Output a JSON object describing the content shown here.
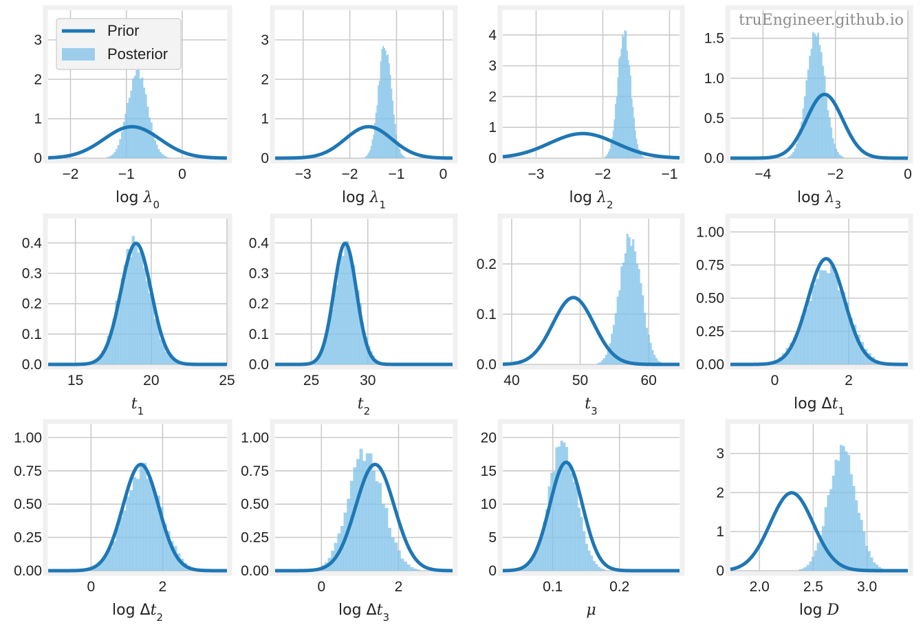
{
  "figure": {
    "watermark": "truEngineer.github.io",
    "legend": {
      "prior_label": "Prior",
      "posterior_label": "Posterior"
    },
    "colors": {
      "prior": "#1f77b4",
      "posterior": "#7fc2e8",
      "grid": "#cbcbcb",
      "frame": "#f0f0f0"
    }
  },
  "chart_data": [
    {
      "name": "log-lambda-0",
      "type": "histogram+line",
      "xlabel_parts": [
        [
          "log ",
          "n"
        ],
        [
          "λ",
          "i"
        ],
        [
          "0",
          "sub"
        ]
      ],
      "xlim": [
        -2.4,
        0.8
      ],
      "ylim": [
        0,
        3.75
      ],
      "xticks": [
        -2,
        -1,
        0
      ],
      "xticklabels": [
        "−2",
        "−1",
        "0"
      ],
      "yticks": [
        0,
        1,
        2,
        3
      ],
      "yticklabels": [
        "0",
        "1",
        "2",
        "3"
      ],
      "prior": {
        "mu": -0.9,
        "sigma": 0.5
      },
      "posterior": {
        "mu": -0.8,
        "sigma": 0.18
      }
    },
    {
      "name": "log-lambda-1",
      "type": "histogram+line",
      "xlabel_parts": [
        [
          "log ",
          "n"
        ],
        [
          "λ",
          "i"
        ],
        [
          "1",
          "sub"
        ]
      ],
      "xlim": [
        -3.6,
        0.2
      ],
      "ylim": [
        0,
        3.75
      ],
      "xticks": [
        -3,
        -2,
        -1,
        0
      ],
      "xticklabels": [
        "−3",
        "−2",
        "−1",
        "0"
      ],
      "yticks": [
        0,
        1,
        2,
        3
      ],
      "yticklabels": [
        "0",
        "1",
        "2",
        "3"
      ],
      "prior": {
        "mu": -1.6,
        "sigma": 0.5
      },
      "posterior": {
        "mu": -1.25,
        "sigma": 0.14
      }
    },
    {
      "name": "log-lambda-2",
      "type": "histogram+line",
      "xlabel_parts": [
        [
          "log ",
          "n"
        ],
        [
          "λ",
          "i"
        ],
        [
          "2",
          "sub"
        ]
      ],
      "xlim": [
        -3.5,
        -0.85
      ],
      "ylim": [
        0,
        4.8
      ],
      "xticks": [
        -3,
        -2,
        -1
      ],
      "xticklabels": [
        "−3",
        "−2",
        "−1"
      ],
      "yticks": [
        0,
        1,
        2,
        3,
        4
      ],
      "yticklabels": [
        "0",
        "1",
        "2",
        "3",
        "4"
      ],
      "prior": {
        "mu": -2.3,
        "sigma": 0.5
      },
      "posterior": {
        "mu": -1.68,
        "sigma": 0.095
      }
    },
    {
      "name": "log-lambda-3",
      "type": "histogram+line",
      "xlabel_parts": [
        [
          "log ",
          "n"
        ],
        [
          "λ",
          "i"
        ],
        [
          "3",
          "sub"
        ]
      ],
      "xlim": [
        -4.9,
        0.0
      ],
      "ylim": [
        0,
        1.85
      ],
      "xticks": [
        -4,
        -2,
        0
      ],
      "xticklabels": [
        "−4",
        "−2",
        "0"
      ],
      "yticks": [
        0,
        0.5,
        1,
        1.5
      ],
      "yticklabels": [
        "0.0",
        "0.5",
        "1.0",
        "1.5"
      ],
      "prior": {
        "mu": -2.3,
        "sigma": 0.5
      },
      "posterior": {
        "mu": -2.55,
        "sigma": 0.25
      }
    },
    {
      "name": "t-1",
      "type": "histogram+line",
      "xlabel_parts": [
        [
          "t",
          "i"
        ],
        [
          "1",
          "sub"
        ]
      ],
      "xlim": [
        13.2,
        25.0
      ],
      "ylim": [
        0,
        0.48
      ],
      "xticks": [
        15,
        20,
        25
      ],
      "xticklabels": [
        "15",
        "20",
        "25"
      ],
      "yticks": [
        0,
        0.1,
        0.2,
        0.3,
        0.4
      ],
      "yticklabels": [
        "0.0",
        "0.1",
        "0.2",
        "0.3",
        "0.4"
      ],
      "prior": {
        "mu": 19,
        "sigma": 1
      },
      "posterior": {
        "mu": 18.9,
        "sigma": 1.0
      }
    },
    {
      "name": "t-2",
      "type": "histogram+line",
      "xlabel_parts": [
        [
          "t",
          "i"
        ],
        [
          "2",
          "sub"
        ]
      ],
      "xlim": [
        21.8,
        37.5
      ],
      "ylim": [
        0,
        0.48
      ],
      "xticks": [
        25,
        30
      ],
      "xticklabels": [
        "25",
        "30"
      ],
      "yticks": [
        0,
        0.1,
        0.2,
        0.3,
        0.4
      ],
      "yticklabels": [
        "0.0",
        "0.1",
        "0.2",
        "0.3",
        "0.4"
      ],
      "prior": {
        "mu": 28,
        "sigma": 1
      },
      "posterior": {
        "mu": 28.1,
        "sigma": 1.05
      }
    },
    {
      "name": "t-3",
      "type": "histogram+line",
      "xlabel_parts": [
        [
          "t",
          "i"
        ],
        [
          "3",
          "sub"
        ]
      ],
      "xlim": [
        38.7,
        64.5
      ],
      "ylim": [
        0,
        0.29
      ],
      "xticks": [
        40,
        50,
        60
      ],
      "xticklabels": [
        "40",
        "50",
        "60"
      ],
      "yticks": [
        0,
        0.1,
        0.2
      ],
      "yticklabels": [
        "0.0",
        "0.1",
        "0.2"
      ],
      "prior": {
        "mu": 49,
        "sigma": 3
      },
      "posterior": {
        "mu": 57.3,
        "sigma": 1.55
      }
    },
    {
      "name": "log-delta-t-1",
      "type": "histogram+line",
      "xlabel_parts": [
        [
          "log Δ",
          "n"
        ],
        [
          "t",
          "i"
        ],
        [
          "1",
          "sub"
        ]
      ],
      "xlim": [
        -1.2,
        3.6
      ],
      "ylim": [
        0,
        1.1
      ],
      "xticks": [
        0,
        2
      ],
      "xticklabels": [
        "0",
        "2"
      ],
      "yticks": [
        0,
        0.25,
        0.5,
        0.75,
        1.0
      ],
      "yticklabels": [
        "0.00",
        "0.25",
        "0.50",
        "0.75",
        "1.00"
      ],
      "prior": {
        "mu": 1.39,
        "sigma": 0.5
      },
      "posterior": {
        "mu": 1.4,
        "sigma": 0.55
      }
    },
    {
      "name": "log-delta-t-2",
      "type": "histogram+line",
      "xlabel_parts": [
        [
          "log Δ",
          "n"
        ],
        [
          "t",
          "i"
        ],
        [
          "2",
          "sub"
        ]
      ],
      "xlim": [
        -1.2,
        3.8
      ],
      "ylim": [
        0,
        1.1
      ],
      "xticks": [
        0,
        2
      ],
      "xticklabels": [
        "0",
        "2"
      ],
      "yticks": [
        0,
        0.25,
        0.5,
        0.75,
        1.0
      ],
      "yticklabels": [
        "0.00",
        "0.25",
        "0.50",
        "0.75",
        "1.00"
      ],
      "prior": {
        "mu": 1.39,
        "sigma": 0.5
      },
      "posterior": {
        "mu": 1.45,
        "sigma": 0.52
      }
    },
    {
      "name": "log-delta-t-3",
      "type": "histogram+line",
      "xlabel_parts": [
        [
          "log Δ",
          "n"
        ],
        [
          "t",
          "i"
        ],
        [
          "3",
          "sub"
        ]
      ],
      "xlim": [
        -1.2,
        3.4
      ],
      "ylim": [
        0,
        1.1
      ],
      "xticks": [
        0,
        2
      ],
      "xticklabels": [
        "0",
        "2"
      ],
      "yticks": [
        0,
        0.25,
        0.5,
        0.75,
        1.0
      ],
      "yticklabels": [
        "0.00",
        "0.25",
        "0.50",
        "0.75",
        "1.00"
      ],
      "prior": {
        "mu": 1.39,
        "sigma": 0.5
      },
      "posterior": {
        "mu": 1.15,
        "sigma": 0.45
      }
    },
    {
      "name": "mu",
      "type": "histogram+line",
      "xlabel_parts": [
        [
          "μ",
          "i"
        ]
      ],
      "xlim": [
        0.025,
        0.29
      ],
      "ylim": [
        0,
        22.0
      ],
      "xticks": [
        0.1,
        0.2
      ],
      "xticklabels": [
        "0.1",
        "0.2"
      ],
      "yticks": [
        0,
        5,
        10,
        15,
        20
      ],
      "yticklabels": [
        "0",
        "5",
        "10",
        "15",
        "20"
      ],
      "prior": {
        "mu": 0.12,
        "sigma": 0.0245
      },
      "posterior": {
        "mu": 0.115,
        "sigma": 0.0205
      }
    },
    {
      "name": "log-D",
      "type": "histogram+line",
      "xlabel_parts": [
        [
          "log ",
          "n"
        ],
        [
          "D",
          "i"
        ]
      ],
      "xlim": [
        1.73,
        3.38
      ],
      "ylim": [
        0,
        3.75
      ],
      "xticks": [
        2.0,
        2.5,
        3.0
      ],
      "xticklabels": [
        "2.0",
        "2.5",
        "3.0"
      ],
      "yticks": [
        0,
        1,
        2,
        3
      ],
      "yticklabels": [
        "0",
        "1",
        "2",
        "3"
      ],
      "prior": {
        "mu": 2.3,
        "sigma": 0.2
      },
      "posterior": {
        "mu": 2.77,
        "sigma": 0.13
      }
    }
  ]
}
